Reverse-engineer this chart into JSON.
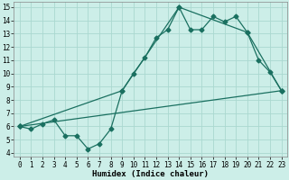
{
  "xlabel": "Humidex (Indice chaleur)",
  "bg_color": "#cceee8",
  "grid_color": "#aad8d0",
  "line_color": "#1a7060",
  "xlim_min": -0.5,
  "xlim_max": 23.5,
  "ylim_min": 3.7,
  "ylim_max": 15.4,
  "xticks": [
    0,
    1,
    2,
    3,
    4,
    5,
    6,
    7,
    8,
    9,
    10,
    11,
    12,
    13,
    14,
    15,
    16,
    17,
    18,
    19,
    20,
    21,
    22,
    23
  ],
  "yticks": [
    4,
    5,
    6,
    7,
    8,
    9,
    10,
    11,
    12,
    13,
    14,
    15
  ],
  "line1_x": [
    0,
    1,
    2,
    3,
    4,
    5,
    6,
    7,
    8,
    9,
    10,
    11,
    12,
    13,
    14,
    15,
    16,
    17,
    18,
    19,
    20,
    21,
    22,
    23
  ],
  "line1_y": [
    6.0,
    5.8,
    6.2,
    6.5,
    5.3,
    5.3,
    4.3,
    4.7,
    5.8,
    8.7,
    10.0,
    11.2,
    12.7,
    13.3,
    15.0,
    13.3,
    13.3,
    14.3,
    13.9,
    14.3,
    13.1,
    11.0,
    10.1,
    8.7
  ],
  "line2_x": [
    0,
    23
  ],
  "line2_y": [
    6.0,
    8.7
  ],
  "line3_x": [
    0,
    9,
    14,
    20,
    23
  ],
  "line3_y": [
    6.0,
    8.7,
    15.0,
    13.1,
    8.7
  ],
  "tick_fontsize": 5.5,
  "xlabel_fontsize": 6.5,
  "lw": 0.9,
  "ms": 2.5
}
